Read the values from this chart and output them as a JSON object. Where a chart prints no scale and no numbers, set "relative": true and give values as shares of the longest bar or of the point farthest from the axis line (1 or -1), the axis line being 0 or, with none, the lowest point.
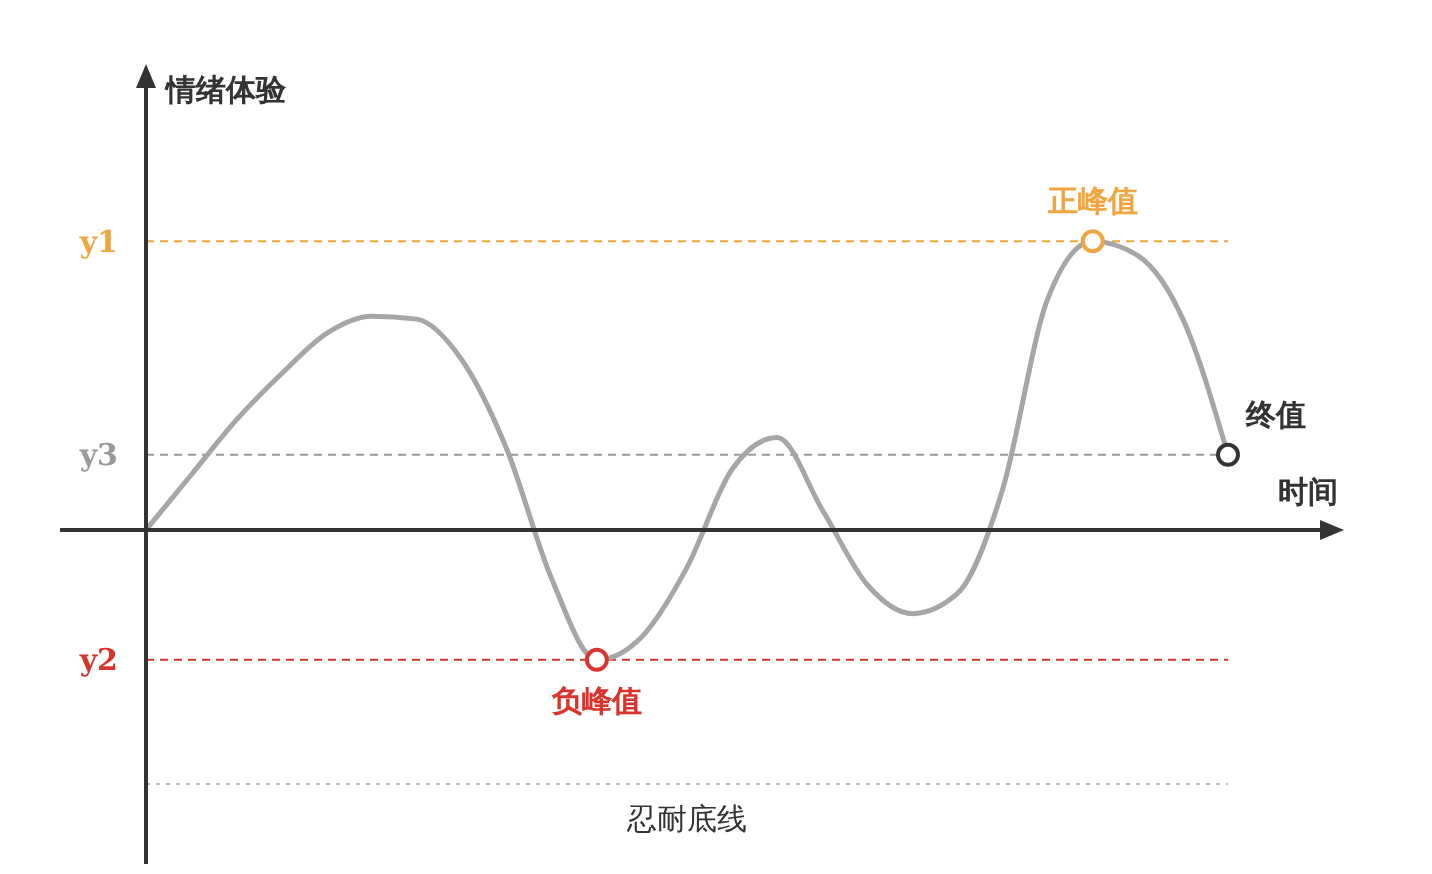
{
  "chart_data": {
    "type": "line",
    "relative": true,
    "xlabel": "时间",
    "ylabel": "情绪体验",
    "categories": [
      null,
      null,
      null,
      null,
      null,
      null,
      null,
      null,
      null,
      null,
      null,
      null,
      null,
      null,
      null,
      null,
      null,
      null,
      null,
      null,
      null,
      null,
      null,
      null,
      null
    ],
    "series": [
      {
        "color": "#a6a6a6",
        "values": [
          0,
          0.19,
          0.38,
          0.54,
          0.68,
          0.74,
          0.73,
          0.59,
          0.28,
          -0.17,
          -0.45,
          -0.37,
          -0.13,
          0.21,
          0.32,
          0.07,
          -0.19,
          -0.29,
          -0.22,
          0.14,
          0.8,
          1,
          0.95,
          0.73,
          0.26
        ]
      }
    ],
    "ref_lines": [
      {
        "axis": "y",
        "value": 1,
        "label": "y1",
        "color": "#f0a640",
        "line_style": "dashed"
      },
      {
        "axis": "y",
        "value": 0.26,
        "label": "y3",
        "color": "#999999",
        "line_style": "dashed"
      },
      {
        "axis": "y",
        "value": -0.45,
        "label": "y2",
        "color": "#d9342b",
        "line_style": "dashed"
      },
      {
        "axis": "y",
        "value": -0.88,
        "label": "忍耐底线",
        "color": "#bbbbbb",
        "line_style": "dotted"
      }
    ],
    "annotations": [
      {
        "text": "正峰值",
        "y": 1
      },
      {
        "text": "负峰值",
        "y": -0.45
      },
      "终值"
    ],
    "grid": false,
    "legend": false,
    "marker": "none",
    "line_style": "solid"
  }
}
